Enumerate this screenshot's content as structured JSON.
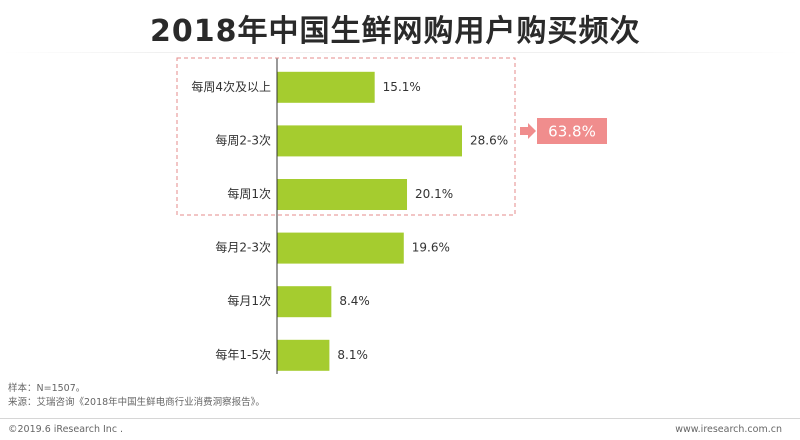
{
  "page": {
    "title": "2018年中国生鲜网购用户购买频次"
  },
  "chart_data": {
    "type": "bar",
    "orientation": "horizontal",
    "title": "2018年中国生鲜网购用户购买频次",
    "categories": [
      "每周4次及以上",
      "每周2-3次",
      "每周1次",
      "每月2-3次",
      "每月1次",
      "每年1-5次"
    ],
    "values": [
      15.1,
      28.6,
      20.1,
      19.6,
      8.4,
      8.1
    ],
    "value_labels": [
      "15.1%",
      "28.6%",
      "20.1%",
      "19.6%",
      "8.4%",
      "8.1%"
    ],
    "xlim": [
      0,
      30
    ],
    "grid": false,
    "bar_color": "#a5cc2f",
    "highlight_group": {
      "categories": [
        "每周4次及以上",
        "每周2-3次",
        "每周1次"
      ],
      "total_label": "63.8%",
      "box_color": "#e58b8b",
      "callout_color": "#f08d8d"
    }
  },
  "footer": {
    "sample": "样本：N=1507。",
    "source": "来源：艾瑞咨询《2018年中国生鲜电商行业消费洞察报告》。",
    "copyright": "©2019.6 iResearch Inc .",
    "website": "www.iresearch.com.cn"
  }
}
